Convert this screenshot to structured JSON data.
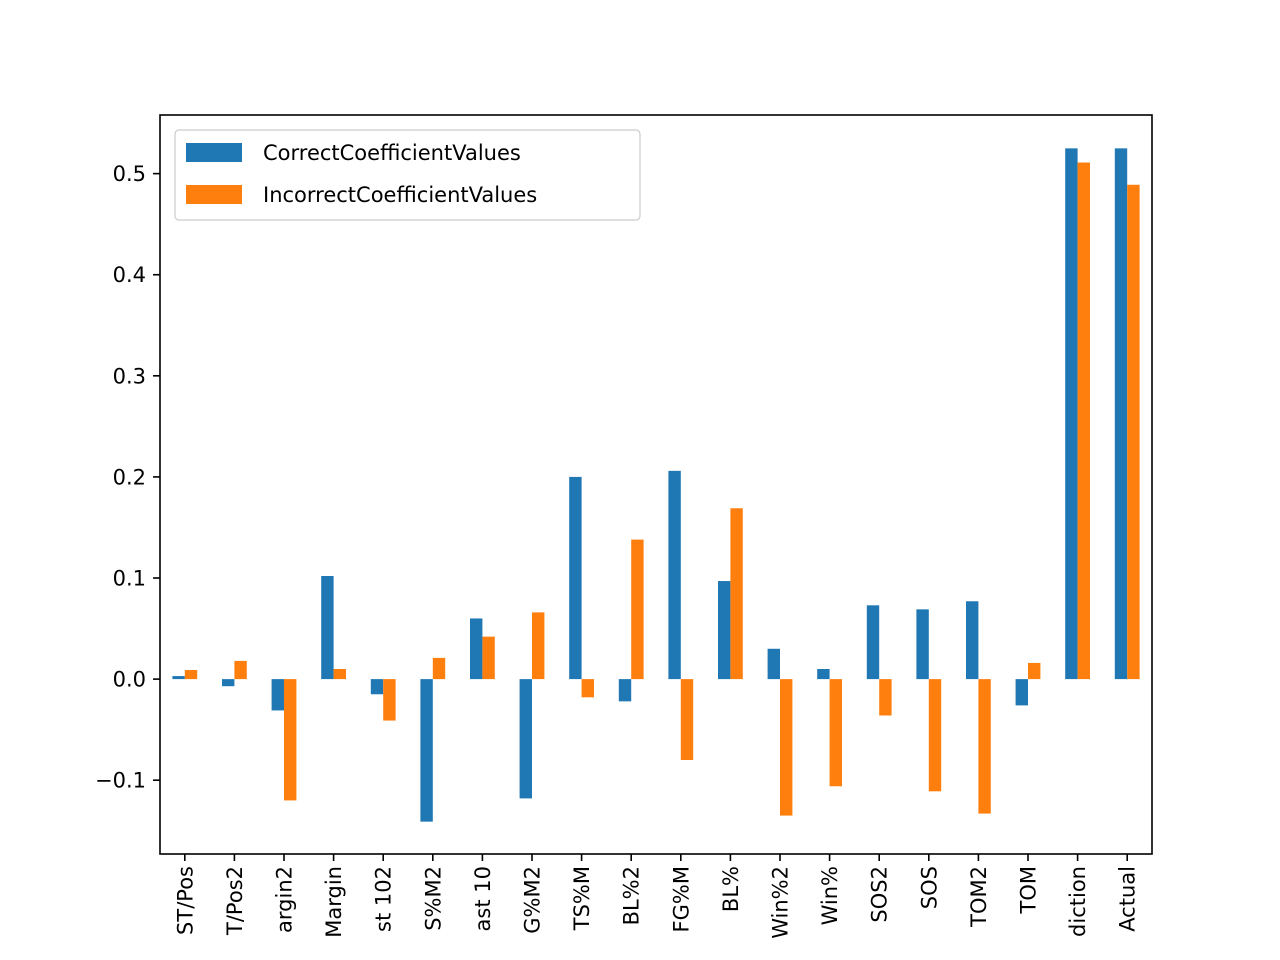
{
  "chart_data": {
    "type": "bar",
    "categories": [
      "ST/Pos",
      "T/Pos2",
      "argin2",
      "Margin",
      "st 102",
      "S%M2",
      "ast 10",
      "G%M2",
      "TS%M",
      "BL%2",
      "FG%M",
      "BL%",
      "Win%2",
      "Win%",
      "SOS2",
      "SOS",
      "TOM2",
      "TOM",
      "diction",
      "Actual"
    ],
    "series": [
      {
        "name": "CorrectCoefficientValues",
        "color": "#1f77b4",
        "values": [
          0.003,
          -0.007,
          -0.031,
          0.102,
          -0.015,
          -0.141,
          0.06,
          -0.118,
          0.2,
          -0.022,
          0.206,
          0.097,
          0.03,
          0.01,
          0.073,
          0.069,
          0.077,
          -0.026,
          0.525,
          0.525
        ]
      },
      {
        "name": "IncorrectCoefficientValues",
        "color": "#ff7f0e",
        "values": [
          0.009,
          0.018,
          -0.12,
          0.01,
          -0.041,
          0.021,
          0.042,
          0.066,
          -0.018,
          0.138,
          -0.08,
          0.169,
          -0.135,
          -0.106,
          -0.036,
          -0.111,
          -0.133,
          0.016,
          0.511,
          0.489
        ]
      }
    ],
    "yticks": [
      -0.1,
      0.0,
      0.1,
      0.2,
      0.3,
      0.4,
      0.5
    ],
    "ytick_labels": [
      "−0.1",
      "0.0",
      "0.1",
      "0.2",
      "0.3",
      "0.4",
      "0.5"
    ],
    "ylim": [
      -0.173,
      0.558
    ],
    "legend_position": "upper-left",
    "grid": false
  }
}
